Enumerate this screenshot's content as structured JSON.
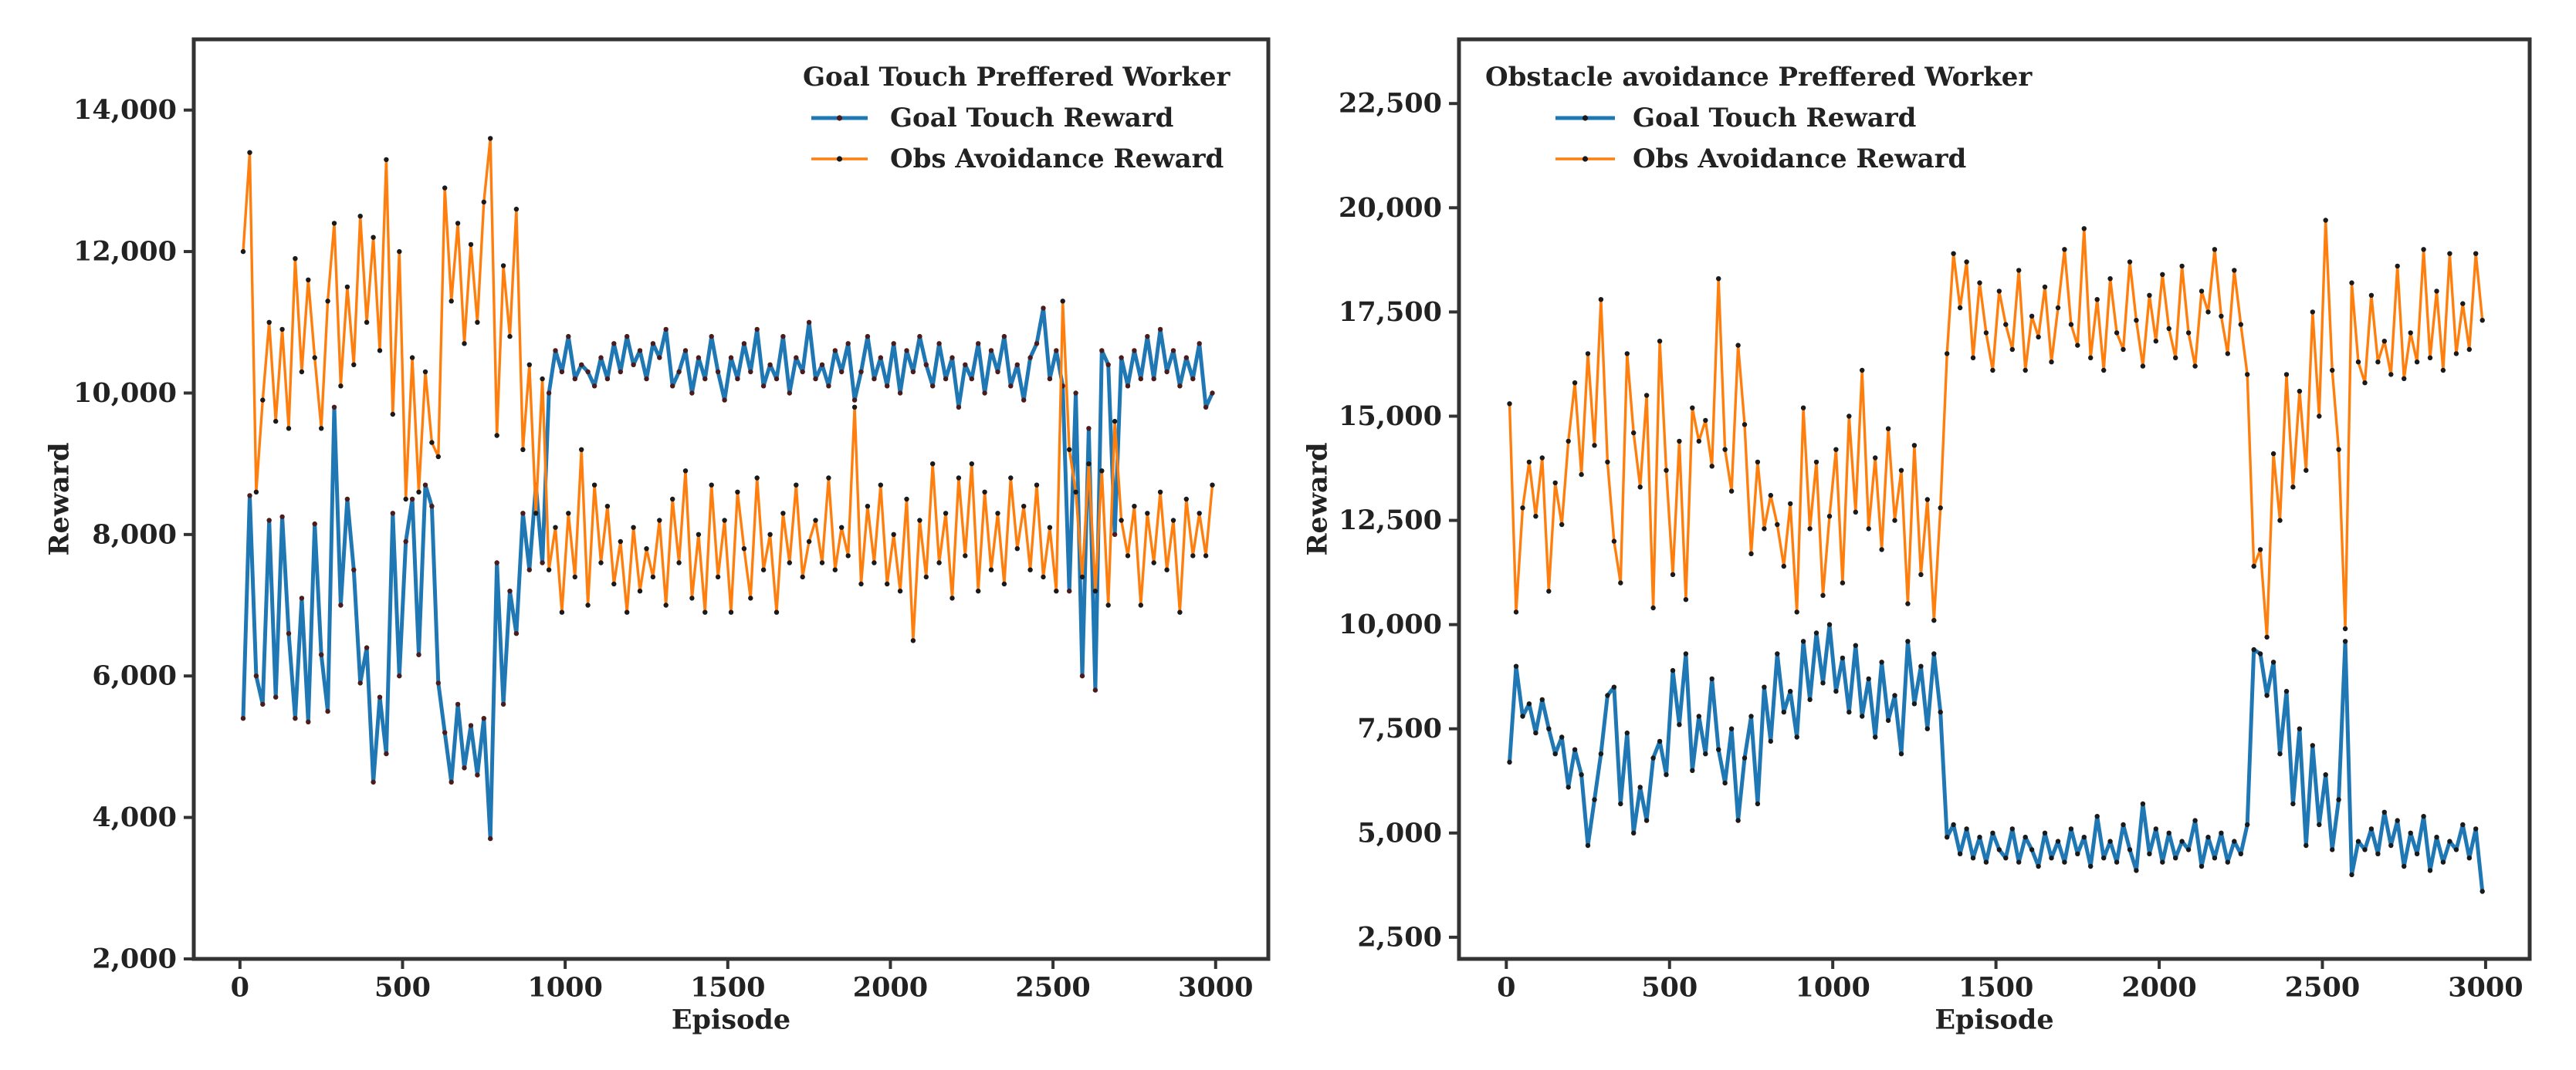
{
  "chart_data": [
    {
      "type": "line",
      "legend_title": "Goal Touch Preffered Worker",
      "legend_position": "top-right",
      "grid": false,
      "xlabel": "Episode",
      "ylabel": "Reward",
      "xlim": [
        -142,
        3162
      ],
      "ylim": [
        2000,
        15000
      ],
      "xticks": {
        "values": [
          0,
          500,
          1000,
          1500,
          2000,
          2500,
          3000
        ],
        "labels": [
          "0",
          "500",
          "1000",
          "1500",
          "2000",
          "2500",
          "3000"
        ]
      },
      "yticks": {
        "values": [
          2000,
          4000,
          6000,
          8000,
          10000,
          12000,
          14000
        ],
        "labels": [
          "2,000",
          "4,000",
          "6,000",
          "8,000",
          "10,000",
          "12,000",
          "14,000"
        ]
      },
      "x": [
        10,
        30,
        50,
        70,
        90,
        110,
        130,
        150,
        170,
        190,
        210,
        230,
        250,
        270,
        290,
        310,
        330,
        350,
        370,
        390,
        410,
        430,
        450,
        470,
        490,
        510,
        530,
        550,
        570,
        590,
        610,
        630,
        650,
        670,
        690,
        710,
        730,
        750,
        770,
        790,
        810,
        830,
        850,
        870,
        890,
        910,
        930,
        950,
        970,
        990,
        1010,
        1030,
        1050,
        1070,
        1090,
        1110,
        1130,
        1150,
        1170,
        1190,
        1210,
        1230,
        1250,
        1270,
        1290,
        1310,
        1330,
        1350,
        1370,
        1390,
        1410,
        1430,
        1450,
        1470,
        1490,
        1510,
        1530,
        1550,
        1570,
        1590,
        1610,
        1630,
        1650,
        1670,
        1690,
        1710,
        1730,
        1750,
        1770,
        1790,
        1810,
        1830,
        1850,
        1870,
        1890,
        1910,
        1930,
        1950,
        1970,
        1990,
        2010,
        2030,
        2050,
        2070,
        2090,
        2110,
        2130,
        2150,
        2170,
        2190,
        2210,
        2230,
        2250,
        2270,
        2290,
        2310,
        2330,
        2350,
        2370,
        2390,
        2410,
        2430,
        2450,
        2470,
        2490,
        2510,
        2530,
        2550,
        2570,
        2590,
        2610,
        2630,
        2650,
        2670,
        2690,
        2710,
        2730,
        2750,
        2770,
        2790,
        2810,
        2830,
        2850,
        2870,
        2890,
        2910,
        2930,
        2950,
        2970,
        2990
      ],
      "series": [
        {
          "name": "Goal Touch Reward",
          "color": "#1f77b4",
          "marker_color": "#4a1c1c",
          "values": [
            5400,
            8550,
            6000,
            5600,
            8200,
            5700,
            8250,
            6600,
            5400,
            7100,
            5350,
            8150,
            6300,
            5500,
            9800,
            7000,
            8500,
            7500,
            5900,
            6400,
            4500,
            5700,
            4900,
            8300,
            6000,
            7900,
            8500,
            6300,
            8700,
            8400,
            5900,
            5200,
            4500,
            5600,
            4700,
            5300,
            4600,
            5400,
            3700,
            7600,
            5600,
            7200,
            6600,
            8300,
            7500,
            8700,
            7600,
            10000,
            10600,
            10300,
            10800,
            10200,
            10400,
            10300,
            10100,
            10500,
            10200,
            10700,
            10300,
            10800,
            10400,
            10600,
            10200,
            10700,
            10500,
            10900,
            10100,
            10300,
            10600,
            10000,
            10500,
            10200,
            10800,
            10300,
            9900,
            10500,
            10200,
            10700,
            10300,
            10900,
            10100,
            10400,
            10200,
            10800,
            10000,
            10500,
            10300,
            11000,
            10200,
            10400,
            10100,
            10600,
            10300,
            10700,
            9900,
            10300,
            10800,
            10200,
            10500,
            10100,
            10700,
            10000,
            10600,
            10300,
            10800,
            10400,
            10100,
            10700,
            10200,
            10500,
            9800,
            10400,
            10200,
            10700,
            10000,
            10600,
            10300,
            10800,
            10100,
            10400,
            9900,
            10500,
            10700,
            11200,
            10200,
            10600,
            10100,
            7200,
            10000,
            6000,
            9500,
            5800,
            10600,
            10400,
            8000,
            10500,
            10100,
            10600,
            10200,
            10800,
            10200,
            10900,
            10300,
            10600,
            10100,
            10500,
            10200,
            10700,
            9800,
            10000
          ]
        },
        {
          "name": "Obs Avoidance Reward",
          "color": "#ff7f0e",
          "marker_color": "#1a1a1a",
          "values": [
            12000,
            13400,
            8600,
            9900,
            11000,
            9600,
            10900,
            9500,
            11900,
            10300,
            11600,
            10500,
            9500,
            11300,
            12400,
            10100,
            11500,
            10400,
            12500,
            11000,
            12200,
            10600,
            13300,
            9700,
            12000,
            8500,
            10500,
            8600,
            10300,
            9300,
            9100,
            12900,
            11300,
            12400,
            10700,
            12100,
            11000,
            12700,
            13600,
            9400,
            11800,
            10800,
            12600,
            9200,
            10400,
            8300,
            10200,
            7500,
            8100,
            6900,
            8300,
            7400,
            9200,
            7000,
            8700,
            7600,
            8400,
            7300,
            7900,
            6900,
            8100,
            7200,
            7800,
            7400,
            8200,
            7000,
            8500,
            7600,
            8900,
            7100,
            8000,
            6900,
            8700,
            7400,
            8200,
            6900,
            8600,
            7800,
            7100,
            8800,
            7500,
            8000,
            6900,
            8300,
            7600,
            8700,
            7400,
            7900,
            8200,
            7600,
            8800,
            7500,
            8100,
            7700,
            9800,
            7300,
            8400,
            7600,
            8700,
            7300,
            8000,
            7200,
            8500,
            6500,
            8200,
            7400,
            9000,
            7600,
            8300,
            7100,
            8800,
            7700,
            9000,
            7200,
            8600,
            7500,
            8300,
            7300,
            8800,
            7800,
            8400,
            7500,
            8700,
            7400,
            8100,
            7200,
            11300,
            9200,
            8600,
            7400,
            9000,
            7200,
            8900,
            7000,
            9600,
            8200,
            7700,
            8400,
            7000,
            8300,
            7600,
            8600,
            7500,
            8200,
            6900,
            8500,
            7700,
            8300,
            7700,
            8700
          ]
        }
      ]
    },
    {
      "type": "line",
      "legend_title": "Obstacle avoidance Preffered Worker",
      "legend_position": "top-left",
      "grid": false,
      "xlabel": "Episode",
      "ylabel": "Reward",
      "xlim": [
        -145,
        3135
      ],
      "ylim": [
        1980,
        24040
      ],
      "xticks": {
        "values": [
          0,
          500,
          1000,
          1500,
          2000,
          2500,
          3000
        ],
        "labels": [
          "0",
          "500",
          "1000",
          "1500",
          "2000",
          "2500",
          "3000"
        ]
      },
      "yticks": {
        "values": [
          2500,
          5000,
          7500,
          10000,
          12500,
          15000,
          17500,
          20000,
          22500
        ],
        "labels": [
          "2,500",
          "5,000",
          "7,500",
          "10,000",
          "12,500",
          "15,000",
          "17,500",
          "20,000",
          "22,500"
        ]
      },
      "x": [
        10,
        30,
        50,
        70,
        90,
        110,
        130,
        150,
        170,
        190,
        210,
        230,
        250,
        270,
        290,
        310,
        330,
        350,
        370,
        390,
        410,
        430,
        450,
        470,
        490,
        510,
        530,
        550,
        570,
        590,
        610,
        630,
        650,
        670,
        690,
        710,
        730,
        750,
        770,
        790,
        810,
        830,
        850,
        870,
        890,
        910,
        930,
        950,
        970,
        990,
        1010,
        1030,
        1050,
        1070,
        1090,
        1110,
        1130,
        1150,
        1170,
        1190,
        1210,
        1230,
        1250,
        1270,
        1290,
        1310,
        1330,
        1350,
        1370,
        1390,
        1410,
        1430,
        1450,
        1470,
        1490,
        1510,
        1530,
        1550,
        1570,
        1590,
        1610,
        1630,
        1650,
        1670,
        1690,
        1710,
        1730,
        1750,
        1770,
        1790,
        1810,
        1830,
        1850,
        1870,
        1890,
        1910,
        1930,
        1950,
        1970,
        1990,
        2010,
        2030,
        2050,
        2070,
        2090,
        2110,
        2130,
        2150,
        2170,
        2190,
        2210,
        2230,
        2250,
        2270,
        2290,
        2310,
        2330,
        2350,
        2370,
        2390,
        2410,
        2430,
        2450,
        2470,
        2490,
        2510,
        2530,
        2550,
        2570,
        2590,
        2610,
        2630,
        2650,
        2670,
        2690,
        2710,
        2730,
        2750,
        2770,
        2790,
        2810,
        2830,
        2850,
        2870,
        2890,
        2910,
        2930,
        2950,
        2970,
        2990
      ],
      "series": [
        {
          "name": "Goal Touch Reward",
          "color": "#1f77b4",
          "marker_color": "#1a1a1a",
          "values": [
            6700,
            9000,
            7800,
            8100,
            7400,
            8200,
            7500,
            6900,
            7300,
            6100,
            7000,
            6400,
            4700,
            5800,
            6900,
            8300,
            8500,
            5700,
            7400,
            5000,
            6100,
            5300,
            6800,
            7200,
            6400,
            8900,
            7600,
            9300,
            6500,
            7800,
            6900,
            8700,
            7000,
            6200,
            7500,
            5300,
            6800,
            7800,
            5700,
            8500,
            7200,
            9300,
            7900,
            8400,
            7300,
            9600,
            8200,
            9800,
            8600,
            10000,
            8400,
            9200,
            7900,
            9500,
            7800,
            8700,
            7300,
            9100,
            7700,
            8300,
            6900,
            9600,
            8100,
            9000,
            7500,
            9300,
            7900,
            4900,
            5200,
            4500,
            5100,
            4400,
            4900,
            4300,
            5000,
            4600,
            4400,
            5100,
            4300,
            4900,
            4600,
            4200,
            5000,
            4400,
            4800,
            4300,
            5100,
            4500,
            4900,
            4200,
            5400,
            4400,
            4800,
            4300,
            5200,
            4600,
            4100,
            5700,
            4500,
            5100,
            4300,
            5000,
            4400,
            4800,
            4600,
            5300,
            4200,
            4900,
            4400,
            5000,
            4300,
            4800,
            4500,
            5200,
            9400,
            9300,
            8300,
            9100,
            6900,
            8400,
            5700,
            7500,
            4700,
            7100,
            5200,
            6400,
            4600,
            5800,
            9600,
            4000,
            4800,
            4600,
            5100,
            4500,
            5500,
            4700,
            5300,
            4200,
            5000,
            4500,
            5400,
            4100,
            4900,
            4300,
            4800,
            4600,
            5200,
            4400,
            5100,
            3600
          ]
        },
        {
          "name": "Obs Avoidance Reward",
          "color": "#ff7f0e",
          "marker_color": "#1a1a1a",
          "values": [
            15300,
            10300,
            12800,
            13900,
            12600,
            14000,
            10800,
            13400,
            12400,
            14400,
            15800,
            13600,
            16500,
            14300,
            17800,
            13900,
            12000,
            11000,
            16500,
            14600,
            13300,
            15500,
            10400,
            16800,
            13700,
            11200,
            14400,
            10600,
            15200,
            14400,
            14900,
            13800,
            18300,
            14200,
            13200,
            16700,
            14800,
            11700,
            13900,
            12300,
            13100,
            12400,
            11400,
            12900,
            10300,
            15200,
            12300,
            13900,
            10700,
            12600,
            14200,
            11000,
            15000,
            12700,
            16100,
            12300,
            14000,
            11800,
            14700,
            12500,
            13700,
            10500,
            14300,
            11200,
            13000,
            10100,
            12800,
            16500,
            18900,
            17600,
            18700,
            16400,
            18200,
            17000,
            16100,
            18000,
            17200,
            16600,
            18500,
            16100,
            17400,
            16900,
            18100,
            16300,
            17600,
            19000,
            17200,
            16700,
            19500,
            16400,
            17800,
            16100,
            18300,
            17000,
            16600,
            18700,
            17300,
            16200,
            17900,
            16800,
            18400,
            17100,
            16400,
            18600,
            17000,
            16200,
            18000,
            17500,
            19000,
            17400,
            16500,
            18500,
            17200,
            16000,
            11400,
            11800,
            9700,
            14100,
            12500,
            16000,
            13300,
            15600,
            13700,
            17500,
            15000,
            19700,
            16100,
            14200,
            9900,
            18200,
            16300,
            15800,
            17900,
            16300,
            16800,
            16000,
            18600,
            15900,
            17000,
            16300,
            19000,
            16400,
            18000,
            16100,
            18900,
            16500,
            17700,
            16600,
            18900,
            17300
          ]
        }
      ]
    }
  ]
}
